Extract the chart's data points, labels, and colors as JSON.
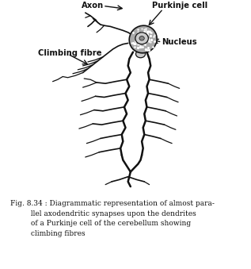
{
  "label_axon": "Axon",
  "label_purkinje": "Purkinje cell",
  "label_climbing": "Climbing fibre",
  "label_nucleus": "Nucleus",
  "caption": "Fig. 8.34 : Diagrammatic representation of almost para-\n         llel axodendritic synapses upon the dendrites\n         of a Purkinje cell of the cerebellum showing\n         climbing fibres",
  "bg_color": "#ffffff",
  "line_color": "#111111",
  "fig_width": 3.17,
  "fig_height": 3.39,
  "dpi": 100
}
